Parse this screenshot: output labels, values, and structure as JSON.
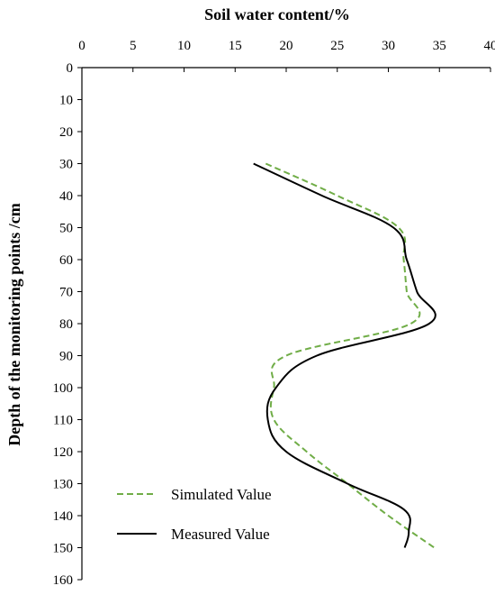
{
  "chart_data": {
    "type": "line",
    "title": "",
    "xlabel": "Soil water content/%",
    "ylabel": "Depth of the monitoring points /cm",
    "x_axis_position": "top",
    "y_axis_inverted": true,
    "xlim": [
      0,
      40
    ],
    "ylim": [
      0,
      160
    ],
    "x_ticks": [
      "0",
      "5",
      "10",
      "15",
      "20",
      "25",
      "30",
      "35",
      "40"
    ],
    "y_ticks": [
      "0",
      "10",
      "20",
      "30",
      "40",
      "50",
      "60",
      "70",
      "80",
      "90",
      "100",
      "110",
      "120",
      "130",
      "140",
      "150",
      "160"
    ],
    "grid": false,
    "legend_position": "bottom-left",
    "series": [
      {
        "name": "Simulated Value",
        "style": "dashed",
        "color": "#70ad47",
        "points": [
          {
            "x": 18.0,
            "y": 30
          },
          {
            "x": 25.0,
            "y": 40
          },
          {
            "x": 31.0,
            "y": 50
          },
          {
            "x": 31.5,
            "y": 60
          },
          {
            "x": 31.8,
            "y": 70
          },
          {
            "x": 32.2,
            "y": 80
          },
          {
            "x": 20.0,
            "y": 90
          },
          {
            "x": 18.8,
            "y": 100
          },
          {
            "x": 18.8,
            "y": 110
          },
          {
            "x": 22.0,
            "y": 120
          },
          {
            "x": 26.0,
            "y": 130
          },
          {
            "x": 30.0,
            "y": 140
          },
          {
            "x": 34.5,
            "y": 150
          }
        ]
      },
      {
        "name": "Measured Value",
        "style": "solid",
        "color": "#000000",
        "points": [
          {
            "x": 16.8,
            "y": 30
          },
          {
            "x": 23.5,
            "y": 40
          },
          {
            "x": 30.5,
            "y": 50
          },
          {
            "x": 31.8,
            "y": 60
          },
          {
            "x": 32.8,
            "y": 70
          },
          {
            "x": 34.0,
            "y": 80
          },
          {
            "x": 23.0,
            "y": 90
          },
          {
            "x": 19.0,
            "y": 100
          },
          {
            "x": 18.2,
            "y": 110
          },
          {
            "x": 20.0,
            "y": 120
          },
          {
            "x": 26.0,
            "y": 130
          },
          {
            "x": 31.5,
            "y": 138
          },
          {
            "x": 32.0,
            "y": 145
          },
          {
            "x": 31.6,
            "y": 150
          }
        ]
      }
    ]
  }
}
